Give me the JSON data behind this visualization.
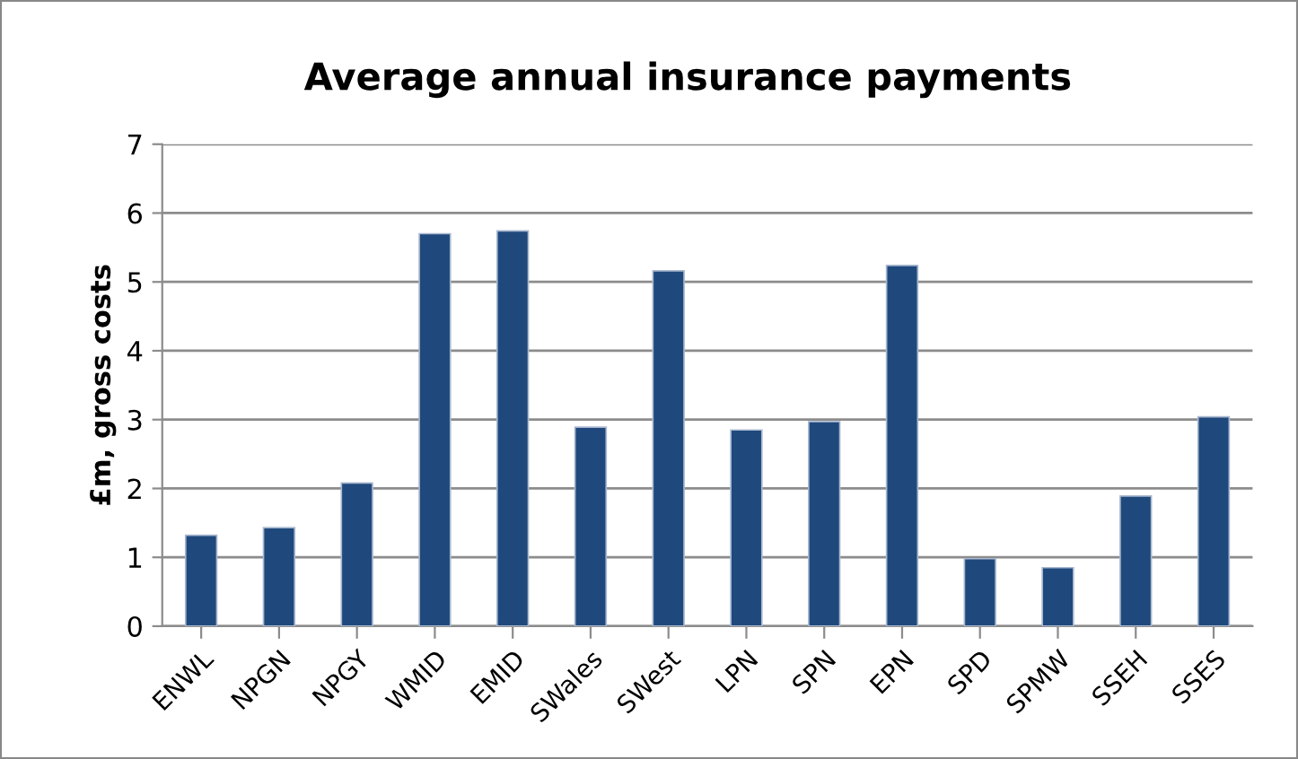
{
  "chart_data": {
    "type": "bar",
    "title": "Average annual insurance payments",
    "ylabel": "£m, gross costs",
    "categories": [
      "ENWL",
      "NPGN",
      "NPGY",
      "WMID",
      "EMID",
      "SWales",
      "SWest",
      "LPN",
      "SPN",
      "EPN",
      "SPD",
      "SPMW",
      "SSEH",
      "SSES"
    ],
    "values": [
      1.32,
      1.43,
      2.08,
      5.7,
      5.74,
      2.89,
      5.16,
      2.85,
      2.97,
      5.24,
      0.98,
      0.85,
      1.89,
      3.04
    ],
    "color": "#1f497d",
    "ylim": [
      0,
      7
    ],
    "yticks": [
      0,
      1,
      2,
      3,
      4,
      5,
      6,
      7
    ],
    "grid": "y",
    "legend": false
  }
}
